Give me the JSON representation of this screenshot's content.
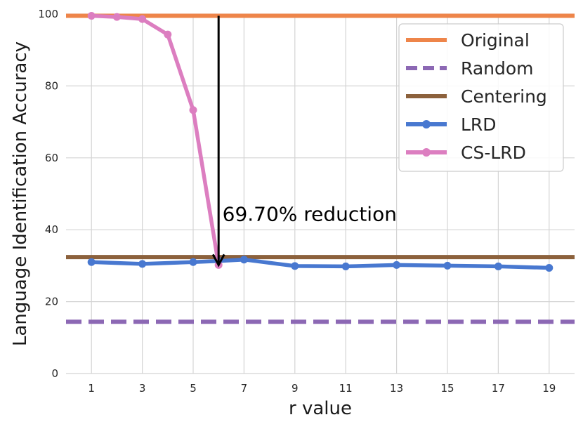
{
  "chart_data": {
    "type": "line",
    "xlabel": "r value",
    "ylabel": "Language Identification Accuracy",
    "xlim": [
      0,
      20
    ],
    "ylim": [
      0,
      100
    ],
    "xticks": [
      1,
      3,
      5,
      7,
      9,
      11,
      13,
      15,
      17,
      19
    ],
    "yticks": [
      0,
      20,
      40,
      60,
      80,
      100
    ],
    "grid": true,
    "legend_position": "top-right",
    "series": [
      {
        "name": "Original",
        "kind": "hline",
        "value": 99.5,
        "color": "#ee854a",
        "dash": false
      },
      {
        "name": "Random",
        "kind": "hline",
        "value": 14.4,
        "color": "#8c68b4",
        "dash": true
      },
      {
        "name": "Centering",
        "kind": "hline",
        "value": 32.4,
        "color": "#8c613c",
        "dash": false
      },
      {
        "name": "LRD",
        "kind": "line",
        "color": "#4878d0",
        "markers": true,
        "x": [
          1,
          3,
          5,
          6,
          7,
          9,
          11,
          13,
          15,
          17,
          19
        ],
        "values": [
          31.0,
          30.5,
          31.0,
          31.3,
          31.7,
          29.9,
          29.8,
          30.2,
          30.0,
          29.8,
          29.4
        ]
      },
      {
        "name": "CS-LRD",
        "kind": "line",
        "color": "#dc7ec0",
        "markers": true,
        "x": [
          1,
          2,
          3,
          4,
          5,
          6
        ],
        "values": [
          99.5,
          99.2,
          98.6,
          94.3,
          73.3,
          30.2
        ]
      }
    ],
    "annotations": [
      {
        "text": "69.70% reduction",
        "arrow_x": 6,
        "arrow_from": 99.5,
        "arrow_to": 30.2,
        "text_x": 6.15,
        "text_y": 42.5
      }
    ]
  }
}
